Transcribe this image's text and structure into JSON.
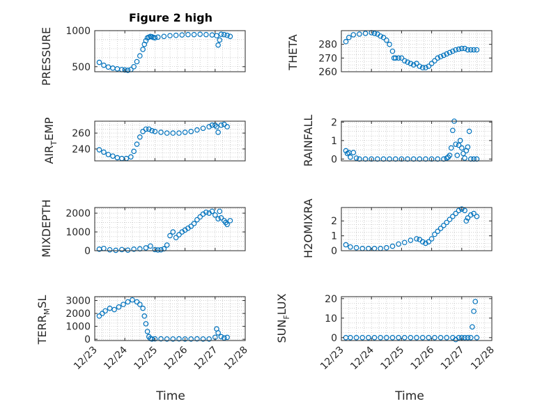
{
  "figure": {
    "title": "Figure 2 high",
    "marker_color": "#0072bd",
    "axis_color": "#262626",
    "grid_color": "#b0b0b0"
  },
  "chart_data": [
    {
      "type": "scatter",
      "title": "Figure 2 high",
      "ylabel": "PRESSURE",
      "xlabel": "",
      "xlim": [
        0,
        5
      ],
      "ylim": [
        430,
        1000
      ],
      "yticks": [
        500,
        1000
      ],
      "ytick_labels": [
        "500",
        "1000"
      ],
      "x": [
        0.15,
        0.3,
        0.45,
        0.6,
        0.75,
        0.9,
        1.0,
        1.1,
        1.2,
        1.3,
        1.4,
        1.5,
        1.6,
        1.65,
        1.7,
        1.75,
        1.8,
        1.85,
        1.9,
        1.95,
        2.0,
        2.1,
        2.3,
        2.5,
        2.7,
        2.9,
        3.1,
        3.3,
        3.5,
        3.7,
        3.9,
        4.05,
        4.1,
        4.15,
        4.2,
        4.3,
        4.4,
        4.5
      ],
      "y": [
        560,
        520,
        495,
        480,
        470,
        460,
        455,
        450,
        460,
        500,
        570,
        650,
        740,
        810,
        860,
        900,
        910,
        920,
        915,
        905,
        900,
        910,
        920,
        930,
        935,
        940,
        945,
        945,
        950,
        945,
        940,
        930,
        800,
        870,
        950,
        945,
        935,
        920
      ]
    },
    {
      "type": "scatter",
      "ylabel": "THETA",
      "xlim": [
        0,
        5
      ],
      "ylim": [
        260,
        290
      ],
      "yticks": [
        260,
        270,
        280
      ],
      "ytick_labels": [
        "260",
        "270",
        "280"
      ],
      "x": [
        0.15,
        0.25,
        0.4,
        0.6,
        0.8,
        1.0,
        1.1,
        1.2,
        1.3,
        1.4,
        1.5,
        1.6,
        1.7,
        1.75,
        1.8,
        1.9,
        2.0,
        2.1,
        2.2,
        2.3,
        2.4,
        2.5,
        2.6,
        2.7,
        2.8,
        2.9,
        3.0,
        3.1,
        3.2,
        3.3,
        3.4,
        3.5,
        3.6,
        3.7,
        3.8,
        3.9,
        4.0,
        4.1,
        4.2,
        4.3,
        4.4,
        4.5
      ],
      "y": [
        282,
        285,
        287,
        287.5,
        288,
        288.5,
        288,
        287.5,
        286,
        285,
        283,
        280,
        275,
        270,
        270,
        270,
        270,
        268,
        267,
        266,
        265,
        266,
        264,
        263,
        263,
        264,
        266,
        268,
        270,
        271,
        272,
        273,
        274,
        275,
        276,
        276.5,
        277,
        277,
        276,
        276,
        276,
        276
      ]
    },
    {
      "type": "scatter",
      "ylabel": "AIR_TEMP",
      "xlim": [
        0,
        5
      ],
      "ylim": [
        225,
        275
      ],
      "yticks": [
        240,
        260
      ],
      "ytick_labels": [
        "240",
        "260"
      ],
      "x": [
        0.15,
        0.3,
        0.45,
        0.6,
        0.75,
        0.9,
        1.05,
        1.2,
        1.3,
        1.4,
        1.5,
        1.6,
        1.7,
        1.8,
        1.9,
        2.0,
        2.2,
        2.4,
        2.6,
        2.8,
        3.0,
        3.2,
        3.4,
        3.6,
        3.8,
        3.9,
        4.0,
        4.05,
        4.1,
        4.2,
        4.3,
        4.4
      ],
      "y": [
        239,
        236,
        233,
        231,
        229,
        228,
        228,
        230,
        237,
        246,
        255,
        262,
        265,
        265,
        263,
        262,
        261,
        260,
        260,
        260,
        261,
        262,
        264,
        266,
        268,
        270,
        270,
        268,
        261,
        270,
        271,
        268
      ]
    },
    {
      "type": "scatter",
      "ylabel": "RAINFALL",
      "xlim": [
        0,
        5
      ],
      "ylim": [
        -0.1,
        2.05
      ],
      "yticks": [
        0,
        1,
        2
      ],
      "ytick_labels": [
        "0",
        "1",
        "2"
      ],
      "x": [
        0.15,
        0.2,
        0.25,
        0.3,
        0.4,
        0.5,
        0.6,
        0.8,
        1.0,
        1.2,
        1.4,
        1.6,
        1.8,
        2.0,
        2.2,
        2.4,
        2.6,
        2.8,
        3.0,
        3.2,
        3.4,
        3.5,
        3.55,
        3.6,
        3.65,
        3.7,
        3.75,
        3.8,
        3.85,
        3.9,
        3.95,
        4.0,
        4.05,
        4.1,
        4.15,
        4.2,
        4.25,
        4.3,
        4.4,
        4.5
      ],
      "y": [
        0.45,
        0.3,
        0.35,
        0.1,
        0.35,
        0.05,
        0.0,
        0.0,
        0.0,
        0.0,
        0.0,
        0.0,
        0.0,
        0.0,
        0.0,
        0.0,
        0.0,
        0.0,
        0.0,
        0.0,
        0.0,
        0.05,
        0.1,
        0.2,
        0.6,
        1.55,
        2.05,
        0.8,
        0.2,
        0.75,
        1.0,
        0.6,
        0.3,
        0.05,
        0.45,
        0.65,
        1.5,
        0.0,
        0.0,
        0.0
      ]
    },
    {
      "type": "scatter",
      "ylabel": "MIXDEPTH",
      "xlim": [
        0,
        5
      ],
      "ylim": [
        0,
        2300
      ],
      "yticks": [
        0,
        1000,
        2000
      ],
      "ytick_labels": [
        "0",
        "1000",
        "2000"
      ],
      "x": [
        0.15,
        0.3,
        0.5,
        0.7,
        0.9,
        1.1,
        1.3,
        1.5,
        1.7,
        1.85,
        2.0,
        2.1,
        2.2,
        2.3,
        2.4,
        2.5,
        2.6,
        2.7,
        2.8,
        2.9,
        3.0,
        3.1,
        3.2,
        3.3,
        3.4,
        3.5,
        3.6,
        3.7,
        3.8,
        3.9,
        4.0,
        4.1,
        4.15,
        4.2,
        4.3,
        4.35,
        4.4,
        4.5
      ],
      "y": [
        80,
        120,
        50,
        20,
        60,
        30,
        80,
        100,
        150,
        250,
        60,
        40,
        50,
        100,
        300,
        800,
        1000,
        700,
        850,
        1000,
        1100,
        1200,
        1300,
        1450,
        1650,
        1800,
        1950,
        2050,
        2000,
        2100,
        1900,
        1700,
        2100,
        1750,
        1600,
        1500,
        1400,
        1600
      ]
    },
    {
      "type": "scatter",
      "ylabel": "H2OMIXRA",
      "xlim": [
        0,
        5
      ],
      "ylim": [
        0,
        2.9
      ],
      "yticks": [
        0,
        1,
        2
      ],
      "ytick_labels": [
        "0",
        "1",
        "2"
      ],
      "x": [
        0.15,
        0.3,
        0.5,
        0.7,
        0.9,
        1.1,
        1.3,
        1.5,
        1.7,
        1.9,
        2.1,
        2.3,
        2.5,
        2.6,
        2.7,
        2.8,
        2.9,
        3.0,
        3.1,
        3.2,
        3.3,
        3.4,
        3.5,
        3.6,
        3.7,
        3.8,
        3.9,
        4.0,
        4.1,
        4.15,
        4.2,
        4.3,
        4.4,
        4.5
      ],
      "y": [
        0.4,
        0.25,
        0.2,
        0.15,
        0.15,
        0.15,
        0.15,
        0.2,
        0.3,
        0.45,
        0.55,
        0.7,
        0.8,
        0.75,
        0.6,
        0.5,
        0.6,
        0.8,
        1.1,
        1.3,
        1.5,
        1.7,
        1.9,
        2.1,
        2.3,
        2.5,
        2.7,
        2.8,
        2.7,
        2.0,
        2.2,
        2.4,
        2.5,
        2.3
      ]
    },
    {
      "type": "scatter",
      "ylabel": "TERR_MSL",
      "xlabel": "Time",
      "xlim": [
        0,
        5
      ],
      "ylim": [
        -100,
        3300
      ],
      "yticks": [
        0,
        1000,
        2000,
        3000
      ],
      "ytick_labels": [
        "0",
        "1000",
        "2000",
        "3000"
      ],
      "x": [
        0.15,
        0.25,
        0.35,
        0.5,
        0.65,
        0.8,
        0.95,
        1.1,
        1.25,
        1.4,
        1.5,
        1.6,
        1.65,
        1.7,
        1.75,
        1.8,
        1.85,
        1.9,
        2.0,
        2.2,
        2.4,
        2.6,
        2.8,
        3.0,
        3.2,
        3.4,
        3.6,
        3.8,
        4.0,
        4.05,
        4.1,
        4.2,
        4.3,
        4.4
      ],
      "y": [
        1800,
        2000,
        2200,
        2400,
        2300,
        2500,
        2700,
        2900,
        3050,
        2900,
        2700,
        2400,
        1800,
        1200,
        600,
        200,
        50,
        20,
        30,
        30,
        20,
        20,
        30,
        20,
        20,
        30,
        20,
        20,
        150,
        800,
        500,
        200,
        100,
        150
      ]
    },
    {
      "type": "scatter",
      "ylabel": "SUN_FLUX",
      "xlabel": "Time",
      "xlim": [
        0,
        5
      ],
      "ylim": [
        -1.5,
        21
      ],
      "yticks": [
        0,
        10,
        20
      ],
      "ytick_labels": [
        "0",
        "10",
        "20"
      ],
      "x": [
        0.15,
        0.3,
        0.5,
        0.7,
        0.9,
        1.1,
        1.3,
        1.5,
        1.7,
        1.9,
        2.1,
        2.3,
        2.5,
        2.7,
        2.9,
        3.1,
        3.3,
        3.5,
        3.7,
        3.8,
        3.9,
        4.0,
        4.1,
        4.2,
        4.3,
        4.35,
        4.4,
        4.45,
        4.5
      ],
      "y": [
        0,
        0,
        0,
        0,
        0,
        0,
        0,
        0,
        0,
        0,
        0,
        0,
        0,
        0,
        0,
        0,
        0,
        0,
        0,
        -1.0,
        0,
        0,
        0,
        0,
        0,
        5.5,
        13.5,
        18.5,
        0
      ]
    }
  ],
  "x_tick_labels": [
    "12/23",
    "12/24",
    "12/25",
    "12/26",
    "12/27",
    "12/28"
  ],
  "ylabels": {
    "pressure": "PRESSURE",
    "theta": "THETA",
    "air_temp": {
      "base": "AIR",
      "sub": "T",
      "rest": "EMP"
    },
    "rainfall": "RAINFALL",
    "mixdepth": "MIXDEPTH",
    "h2omixra": "H2OMIXRA",
    "terr_msl": {
      "base": "TERR",
      "sub": "M",
      "rest": "SL"
    },
    "sun_flux": {
      "base": "SUN",
      "sub": "F",
      "rest": "LUX"
    }
  },
  "xlabel": "Time"
}
